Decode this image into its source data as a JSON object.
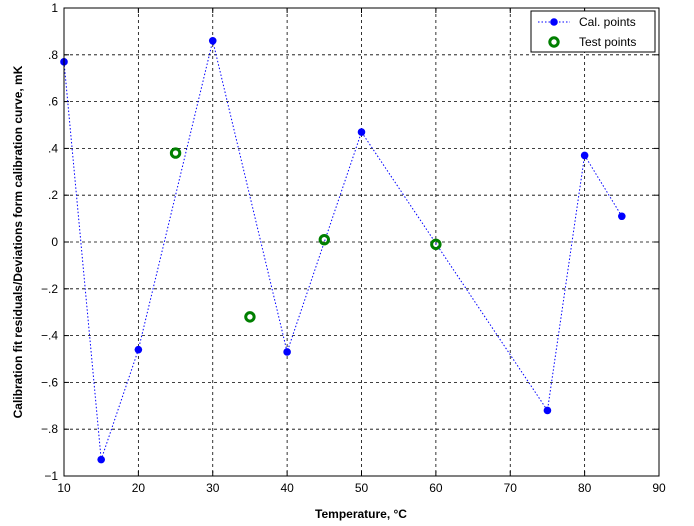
{
  "chart_data": {
    "type": "scatter",
    "title": "",
    "xlabel": "Temperature, °C",
    "ylabel": "Calibration fit residuals/Deviations form calibration curve, mK",
    "xlim": [
      10,
      90
    ],
    "ylim": [
      -1,
      1
    ],
    "x_ticks": [
      10,
      20,
      30,
      40,
      50,
      60,
      70,
      80,
      90
    ],
    "y_ticks": [
      -1,
      -0.8,
      -0.6,
      -0.4,
      -0.2,
      0,
      0.2,
      0.4,
      0.6,
      0.8,
      1
    ],
    "grid": true,
    "legend_position": "top-right",
    "series": [
      {
        "name": "Cal. points",
        "style": "dotted-line-with-filled-markers",
        "color": "#0000ff",
        "x": [
          10,
          15,
          20,
          30,
          40,
          50,
          75,
          80,
          85
        ],
        "y": [
          0.77,
          -0.93,
          -0.46,
          0.86,
          -0.47,
          0.47,
          -0.72,
          0.37,
          0.11
        ],
        "segments": [
          [
            0,
            1,
            2,
            3,
            4,
            5,
            6,
            7
          ],
          [
            7,
            8
          ]
        ]
      },
      {
        "name": "Test points",
        "style": "ring-markers",
        "color": "#007f00",
        "x": [
          25,
          35,
          45,
          60
        ],
        "y": [
          0.38,
          -0.32,
          0.01,
          -0.01
        ]
      }
    ]
  }
}
